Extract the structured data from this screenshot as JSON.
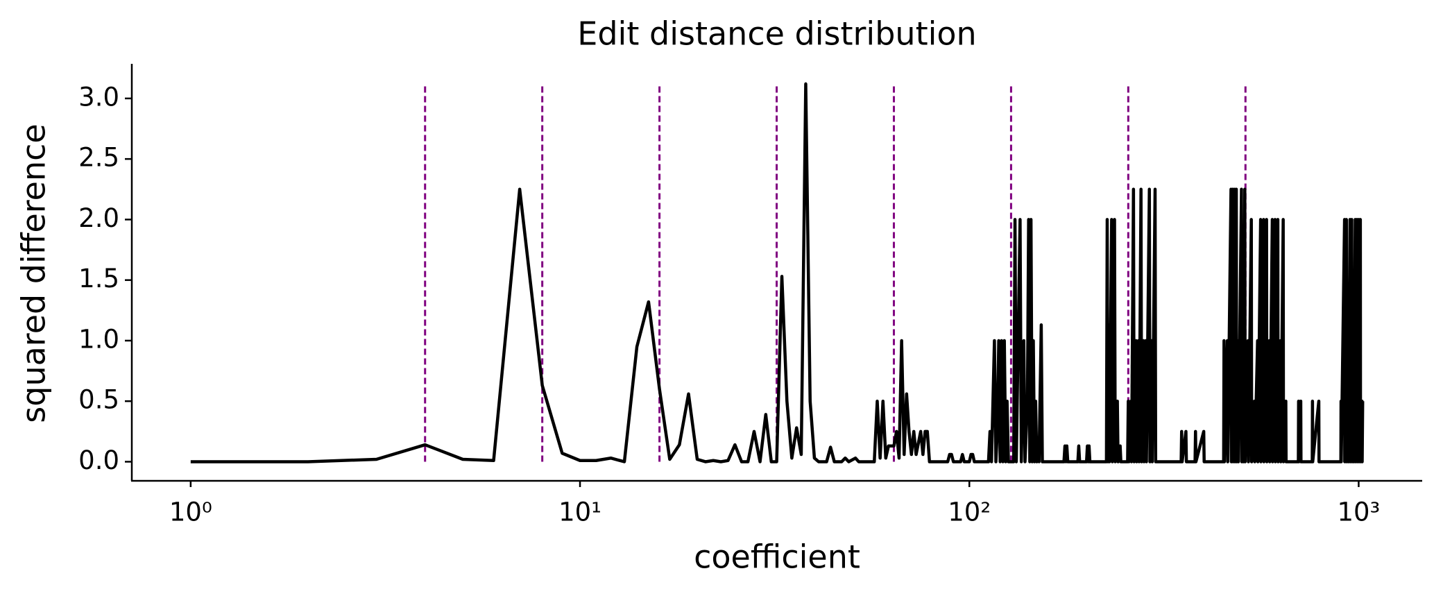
{
  "chart_data": {
    "type": "line",
    "title": "Edit distance distribution",
    "xlabel": "coefficient",
    "ylabel": "squared difference",
    "xscale": "log",
    "xlim": [
      0.706,
      1456
    ],
    "ylim": [
      -0.152,
      3.28
    ],
    "xticks": [
      {
        "value": 1,
        "label": "10⁰"
      },
      {
        "value": 10,
        "label": "10¹"
      },
      {
        "value": 100,
        "label": "10²"
      },
      {
        "value": 1000,
        "label": "10³"
      }
    ],
    "yticks": [
      {
        "value": 0,
        "label": "0.0"
      },
      0.5,
      {
        "value": 1,
        "label": "1.0"
      },
      1.5,
      {
        "value": 2,
        "label": "2.0"
      },
      2.5,
      {
        "value": 3,
        "label": "3.0"
      }
    ],
    "color": "#000000",
    "vline_color": "#800080",
    "vlines": [
      4,
      8,
      16,
      32,
      64,
      128,
      256,
      512
    ],
    "x": [
      1,
      2,
      3,
      4,
      5,
      6,
      7,
      8,
      9,
      10,
      11,
      12,
      13,
      14,
      15,
      16,
      17,
      18,
      19,
      20,
      21,
      22,
      23,
      24,
      25,
      26,
      27,
      28,
      29,
      30,
      31,
      32,
      33,
      34,
      35,
      36,
      37,
      38,
      39,
      40,
      41,
      42,
      43,
      44,
      45,
      47,
      48,
      49,
      51,
      52,
      57,
      58,
      59,
      60,
      61,
      62,
      64,
      65,
      66,
      67,
      68,
      69,
      70,
      71,
      72,
      73,
      75,
      76,
      77,
      78,
      79,
      88,
      89,
      90,
      91,
      95,
      96,
      97,
      100,
      101,
      102,
      103,
      112,
      113,
      114,
      116,
      117,
      118,
      119,
      120,
      121,
      122,
      123,
      124,
      125,
      126,
      130,
      131,
      132,
      135,
      136,
      138,
      139,
      141,
      142,
      143,
      144,
      145,
      146,
      147,
      148,
      149,
      150,
      151,
      153,
      154,
      175,
      176,
      177,
      178,
      179,
      190,
      191,
      192,
      200,
      201,
      202,
      203,
      204,
      225,
      226,
      227,
      228,
      229,
      232,
      233,
      236,
      237,
      240,
      241,
      244,
      245,
      255,
      256,
      257,
      260,
      261,
      264,
      265,
      268,
      269,
      272,
      273,
      276,
      277,
      280,
      281,
      284,
      285,
      290,
      291,
      294,
      295,
      300,
      301,
      350,
      351,
      352,
      360,
      361,
      380,
      381,
      382,
      400,
      401,
      450,
      451,
      452,
      460,
      461,
      470,
      471,
      475,
      476,
      480,
      481,
      485,
      486,
      490,
      491,
      500,
      501,
      505,
      506,
      510,
      511,
      520,
      521,
      530,
      531,
      540,
      541,
      550,
      551,
      560,
      561,
      570,
      571,
      580,
      581,
      590,
      591,
      600,
      601,
      610,
      611,
      620,
      621,
      630,
      631,
      640,
      641,
      650,
      651,
      700,
      701,
      702,
      710,
      711,
      760,
      761,
      762,
      790,
      791,
      900,
      901,
      902,
      920,
      921,
      930,
      931,
      940,
      941,
      950,
      951,
      960,
      961,
      970,
      971,
      980,
      981,
      990,
      991,
      1000,
      1001,
      1010,
      1011,
      1020,
      1021,
      1024
    ],
    "values": [
      0,
      0,
      0.02,
      0.14,
      0.02,
      0.01,
      2.25,
      0.63,
      0.07,
      0.01,
      0.01,
      0.03,
      0,
      0.95,
      1.32,
      0.6,
      0.02,
      0.14,
      0.56,
      0.02,
      0,
      0.01,
      0,
      0.01,
      0.14,
      0,
      0,
      0.25,
      0,
      0.39,
      0,
      0,
      1.53,
      0.5,
      0.03,
      0.28,
      0.06,
      3.12,
      0.5,
      0.03,
      0,
      0,
      0,
      0.12,
      0,
      0,
      0.03,
      0,
      0.03,
      0,
      0,
      0.5,
      0.03,
      0.5,
      0.03,
      0.13,
      0.13,
      0.25,
      0.03,
      1,
      0.06,
      0.56,
      0.25,
      0.06,
      0.25,
      0.06,
      0.25,
      0.06,
      0.25,
      0.25,
      0,
      0,
      0.06,
      0.06,
      0,
      0,
      0.06,
      0,
      0,
      0.06,
      0.06,
      0,
      0,
      0.25,
      0,
      1,
      0,
      0.25,
      1,
      0,
      1,
      0,
      1,
      0,
      0.5,
      0,
      0,
      2,
      0,
      2,
      0,
      1,
      0,
      0.5,
      2,
      0,
      2,
      0,
      1,
      0,
      0.5,
      0,
      0.13,
      0,
      1.13,
      0,
      0,
      0.13,
      0,
      0.13,
      0,
      0,
      0.13,
      0,
      0,
      0.13,
      0,
      0.13,
      0,
      0,
      2,
      0,
      1.13,
      0,
      2,
      0,
      2,
      0,
      0.5,
      0,
      0.13,
      0,
      0,
      0.5,
      0,
      0.5,
      0,
      2.25,
      0,
      1,
      0,
      1,
      0,
      2.25,
      0,
      1,
      0,
      1,
      0,
      2.25,
      0,
      1,
      0,
      2.25,
      0,
      0,
      0.25,
      0,
      0.25,
      0,
      0,
      0.25,
      0,
      0.25,
      0,
      0,
      1,
      0,
      1,
      0,
      2.25,
      0,
      2.25,
      0,
      2.25,
      0,
      2.25,
      0,
      1,
      0,
      2.25,
      0,
      1,
      0,
      2.25,
      0,
      1,
      0,
      2,
      0,
      0.5,
      0,
      1,
      0,
      2,
      0,
      2,
      0,
      2,
      0,
      1,
      0,
      2,
      0,
      2,
      0,
      2,
      0,
      1,
      0,
      2,
      0,
      0.5,
      0,
      0,
      0.5,
      0,
      0.5,
      0,
      0,
      0.5,
      0,
      0.5,
      0,
      0,
      0.5,
      0,
      2,
      0,
      2,
      0,
      0.5,
      0,
      2,
      0,
      2,
      0,
      0.5,
      0,
      2,
      0,
      2,
      0,
      2,
      0,
      2,
      0,
      0.5,
      0,
      0.5
    ]
  }
}
